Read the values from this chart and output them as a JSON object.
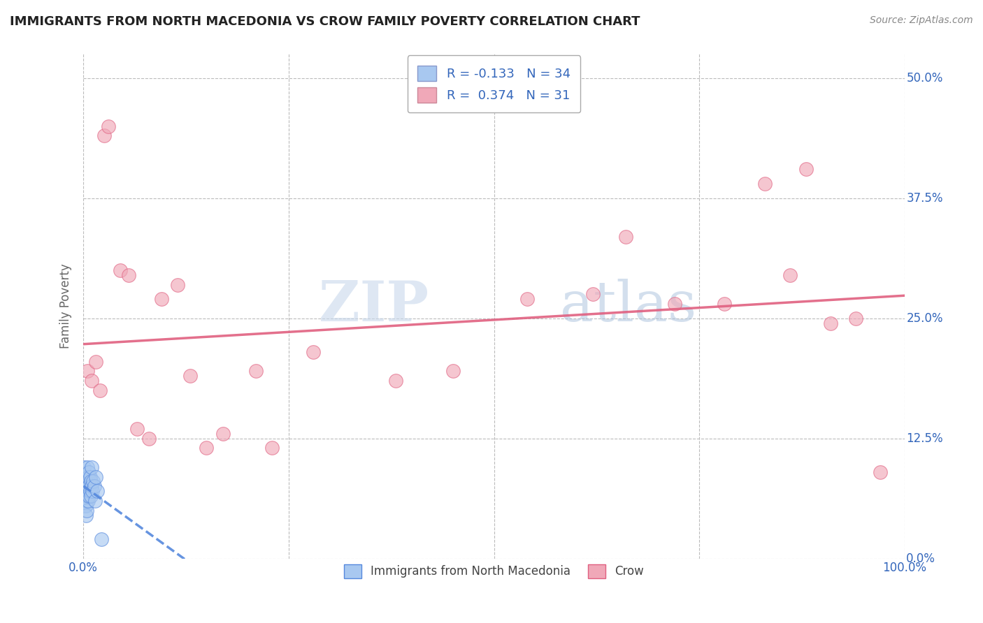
{
  "title": "IMMIGRANTS FROM NORTH MACEDONIA VS CROW FAMILY POVERTY CORRELATION CHART",
  "source": "Source: ZipAtlas.com",
  "ylabel": "Family Poverty",
  "xlim": [
    0,
    1.0
  ],
  "ylim": [
    0,
    0.525
  ],
  "xticks": [
    0.0,
    0.25,
    0.5,
    0.75,
    1.0
  ],
  "xticklabels_show": [
    "0.0%",
    "",
    "",
    "",
    "100.0%"
  ],
  "yticks": [
    0.0,
    0.125,
    0.25,
    0.375,
    0.5
  ],
  "yticklabels": [
    "0.0%",
    "12.5%",
    "25.0%",
    "37.5%",
    "50.0%"
  ],
  "blue_R": -0.133,
  "blue_N": 34,
  "pink_R": 0.374,
  "pink_N": 31,
  "blue_label": "Immigrants from North Macedonia",
  "pink_label": "Crow",
  "watermark_zip": "ZIP",
  "watermark_atlas": "atlas",
  "blue_scatter_x": [
    0.001,
    0.001,
    0.002,
    0.002,
    0.002,
    0.003,
    0.003,
    0.003,
    0.003,
    0.004,
    0.004,
    0.004,
    0.005,
    0.005,
    0.005,
    0.006,
    0.006,
    0.006,
    0.007,
    0.007,
    0.007,
    0.008,
    0.008,
    0.009,
    0.009,
    0.01,
    0.01,
    0.011,
    0.012,
    0.013,
    0.014,
    0.015,
    0.017,
    0.022
  ],
  "blue_scatter_y": [
    0.095,
    0.075,
    0.085,
    0.065,
    0.055,
    0.08,
    0.065,
    0.055,
    0.045,
    0.07,
    0.06,
    0.05,
    0.095,
    0.075,
    0.065,
    0.085,
    0.07,
    0.06,
    0.09,
    0.075,
    0.065,
    0.085,
    0.07,
    0.08,
    0.065,
    0.095,
    0.075,
    0.07,
    0.08,
    0.075,
    0.06,
    0.085,
    0.07,
    0.02
  ],
  "pink_scatter_x": [
    0.005,
    0.01,
    0.015,
    0.02,
    0.025,
    0.03,
    0.045,
    0.055,
    0.065,
    0.08,
    0.095,
    0.115,
    0.13,
    0.15,
    0.17,
    0.21,
    0.23,
    0.28,
    0.38,
    0.45,
    0.54,
    0.62,
    0.66,
    0.72,
    0.78,
    0.83,
    0.86,
    0.88,
    0.91,
    0.94,
    0.97
  ],
  "pink_scatter_y": [
    0.195,
    0.185,
    0.205,
    0.175,
    0.44,
    0.45,
    0.3,
    0.295,
    0.135,
    0.125,
    0.27,
    0.285,
    0.19,
    0.115,
    0.13,
    0.195,
    0.115,
    0.215,
    0.185,
    0.195,
    0.27,
    0.275,
    0.335,
    0.265,
    0.265,
    0.39,
    0.295,
    0.405,
    0.245,
    0.25,
    0.09
  ],
  "blue_color": "#A8C8F0",
  "pink_color": "#F0A8B8",
  "blue_line_color": "#5588DD",
  "pink_line_color": "#E06080",
  "background_color": "#FFFFFF",
  "grid_color": "#BBBBBB"
}
